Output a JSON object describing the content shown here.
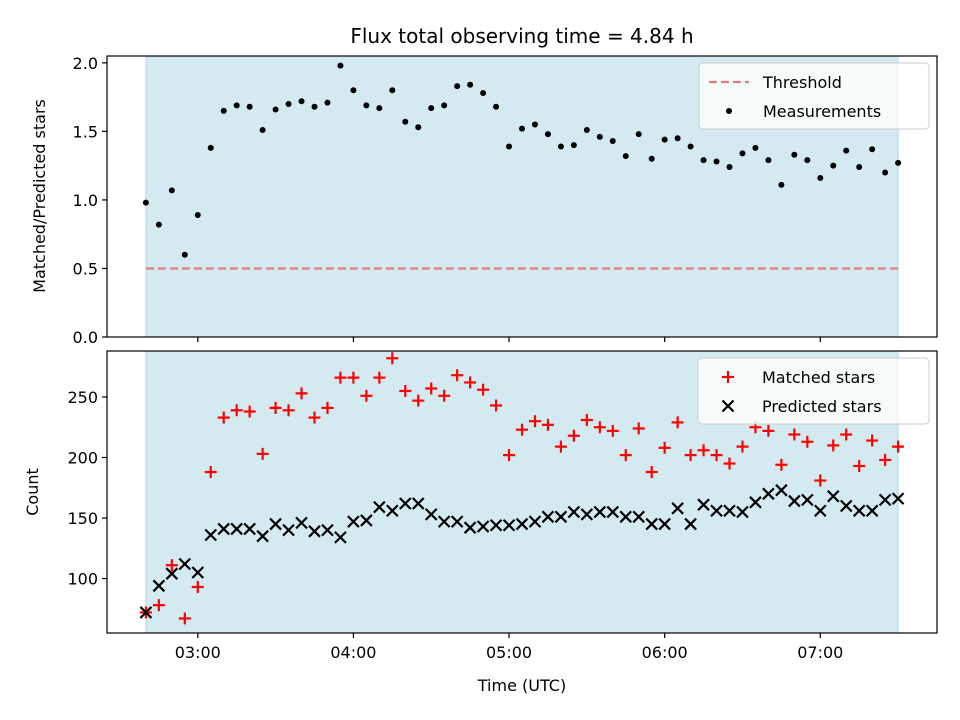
{
  "chart_data": [
    {
      "type": "scatter",
      "title": "Flux total observing time = 4.84 h",
      "xlabel": "",
      "ylabel": "Matched/Predicted stars",
      "xlim": [
        "02:25",
        "07:45"
      ],
      "ylim": [
        0,
        2.05
      ],
      "yticks": [
        "0.0",
        "0.5",
        "1.0",
        "1.5",
        "2.0"
      ],
      "ytick_values": [
        0,
        0.5,
        1.0,
        1.5,
        2.0
      ],
      "xticks": [
        "03:00",
        "04:00",
        "05:00",
        "06:00",
        "07:00"
      ],
      "observing_span": [
        "02:40",
        "07:30"
      ],
      "shade_color": "#d3eaf0",
      "legend_position": "top-right",
      "threshold": {
        "name": "Threshold",
        "value": 0.5,
        "color": "#e87a7a"
      },
      "series": [
        {
          "name": "Measurements",
          "color": "#000000",
          "x": [
            "02:40",
            "02:45",
            "02:50",
            "02:55",
            "03:00",
            "03:05",
            "03:10",
            "03:15",
            "03:20",
            "03:25",
            "03:30",
            "03:35",
            "03:40",
            "03:45",
            "03:50",
            "03:55",
            "04:00",
            "04:05",
            "04:10",
            "04:15",
            "04:20",
            "04:25",
            "04:30",
            "04:35",
            "04:40",
            "04:45",
            "04:50",
            "04:55",
            "05:00",
            "05:05",
            "05:10",
            "05:15",
            "05:20",
            "05:25",
            "05:30",
            "05:35",
            "05:40",
            "05:45",
            "05:50",
            "05:55",
            "06:00",
            "06:05",
            "06:10",
            "06:15",
            "06:20",
            "06:25",
            "06:30",
            "06:35",
            "06:40",
            "06:45",
            "06:50",
            "06:55",
            "07:00",
            "07:05",
            "07:10",
            "07:15",
            "07:20",
            "07:25",
            "07:30"
          ],
          "y": [
            0.98,
            0.82,
            1.07,
            0.6,
            0.89,
            1.38,
            1.65,
            1.69,
            1.68,
            1.51,
            1.66,
            1.7,
            1.72,
            1.68,
            1.71,
            1.98,
            1.8,
            1.69,
            1.67,
            1.8,
            1.57,
            1.53,
            1.67,
            1.69,
            1.83,
            1.84,
            1.78,
            1.68,
            1.39,
            1.52,
            1.55,
            1.48,
            1.39,
            1.4,
            1.51,
            1.46,
            1.43,
            1.32,
            1.48,
            1.3,
            1.44,
            1.45,
            1.39,
            1.29,
            1.28,
            1.24,
            1.34,
            1.38,
            1.29,
            1.11,
            1.33,
            1.29,
            1.16,
            1.25,
            1.36,
            1.24,
            1.37,
            1.2,
            1.27
          ]
        }
      ]
    },
    {
      "type": "scatter",
      "title": "",
      "xlabel": "Time (UTC)",
      "ylabel": "Count",
      "xlim": [
        "02:25",
        "07:45"
      ],
      "ylim": [
        55,
        288
      ],
      "yticks": [
        "100",
        "150",
        "200",
        "250"
      ],
      "ytick_values": [
        100,
        150,
        200,
        250
      ],
      "xticks": [
        "03:00",
        "04:00",
        "05:00",
        "06:00",
        "07:00"
      ],
      "observing_span": [
        "02:40",
        "07:30"
      ],
      "shade_color": "#d3eaf0",
      "legend_position": "top-right",
      "series": [
        {
          "name": "Matched stars",
          "color": "#ff0000",
          "marker": "plus",
          "x": [
            "02:40",
            "02:45",
            "02:50",
            "02:55",
            "03:00",
            "03:05",
            "03:10",
            "03:15",
            "03:20",
            "03:25",
            "03:30",
            "03:35",
            "03:40",
            "03:45",
            "03:50",
            "03:55",
            "04:00",
            "04:05",
            "04:10",
            "04:15",
            "04:20",
            "04:25",
            "04:30",
            "04:35",
            "04:40",
            "04:45",
            "04:50",
            "04:55",
            "05:00",
            "05:05",
            "05:10",
            "05:15",
            "05:20",
            "05:25",
            "05:30",
            "05:35",
            "05:40",
            "05:45",
            "05:50",
            "05:55",
            "06:00",
            "06:05",
            "06:10",
            "06:15",
            "06:20",
            "06:25",
            "06:30",
            "06:35",
            "06:40",
            "06:45",
            "06:50",
            "06:55",
            "07:00",
            "07:05",
            "07:10",
            "07:15",
            "07:20",
            "07:25",
            "07:30"
          ],
          "y": [
            72,
            78,
            111,
            67,
            93,
            188,
            233,
            239,
            238,
            203,
            241,
            239,
            253,
            233,
            241,
            266,
            266,
            251,
            266,
            282,
            255,
            247,
            257,
            251,
            268,
            262,
            256,
            243,
            202,
            223,
            230,
            227,
            209,
            218,
            231,
            225,
            222,
            202,
            224,
            188,
            208,
            229,
            202,
            206,
            202,
            195,
            209,
            225,
            222,
            194,
            219,
            213,
            181,
            210,
            219,
            193,
            214,
            198,
            209
          ]
        },
        {
          "name": "Predicted stars",
          "color": "#000000",
          "marker": "x",
          "x": [
            "02:40",
            "02:45",
            "02:50",
            "02:55",
            "03:00",
            "03:05",
            "03:10",
            "03:15",
            "03:20",
            "03:25",
            "03:30",
            "03:35",
            "03:40",
            "03:45",
            "03:50",
            "03:55",
            "04:00",
            "04:05",
            "04:10",
            "04:15",
            "04:20",
            "04:25",
            "04:30",
            "04:35",
            "04:40",
            "04:45",
            "04:50",
            "04:55",
            "05:00",
            "05:05",
            "05:10",
            "05:15",
            "05:20",
            "05:25",
            "05:30",
            "05:35",
            "05:40",
            "05:45",
            "05:50",
            "05:55",
            "06:00",
            "06:05",
            "06:10",
            "06:15",
            "06:20",
            "06:25",
            "06:30",
            "06:35",
            "06:40",
            "06:45",
            "06:50",
            "06:55",
            "07:00",
            "07:05",
            "07:10",
            "07:15",
            "07:20",
            "07:25",
            "07:30"
          ],
          "y": [
            72,
            94,
            104,
            112,
            105,
            136,
            141,
            141,
            141,
            135,
            145,
            140,
            146,
            139,
            140,
            134,
            147,
            148,
            159,
            156,
            162,
            162,
            153,
            147,
            147,
            142,
            143,
            144,
            144,
            145,
            147,
            151,
            151,
            155,
            153,
            155,
            155,
            151,
            151,
            145,
            145,
            158,
            145,
            161,
            156,
            156,
            155,
            163,
            170,
            173,
            164,
            165,
            156,
            168,
            160,
            156,
            156,
            165,
            166
          ]
        }
      ]
    }
  ]
}
